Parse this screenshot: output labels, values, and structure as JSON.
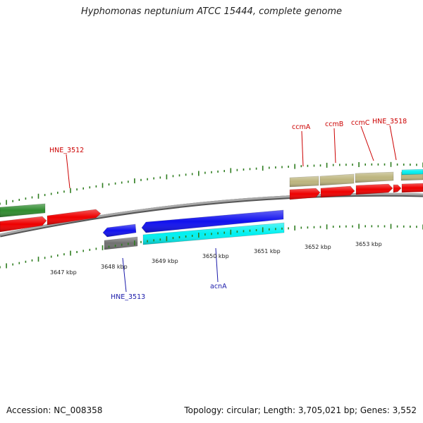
{
  "title": "Hyphomonas neptunium ATCC 15444, complete genome",
  "footer": {
    "accession": "Accession: NC_008358",
    "topology": "Topology: circular; Length: 3,705,021 bp; Genes: 3,552"
  },
  "colors": {
    "backbone": "#8c8c8c",
    "tick": "#2e7d1f",
    "forward_label": "#cc0000",
    "reverse_label": "#1a1aaa",
    "red": "#ee0000",
    "green": "#2e8b2e",
    "khaki": "#bdb57e",
    "cyan": "#00f0f0",
    "blue": "#1010ee",
    "grey": "#707070"
  },
  "scale_labels": [
    "3647 kbp",
    "3648 kbp",
    "3649 kbp",
    "3650 kbp",
    "3651 kbp",
    "3652 kbp",
    "3653 kbp"
  ],
  "gene_labels": [
    {
      "text": "HNE_3512",
      "strand": "forward"
    },
    {
      "text": "ccmA",
      "strand": "forward"
    },
    {
      "text": "ccmB",
      "strand": "forward"
    },
    {
      "text": "ccmC",
      "strand": "forward"
    },
    {
      "text": "HNE_3518",
      "strand": "forward"
    },
    {
      "text": "HNE_3513",
      "strand": "reverse"
    },
    {
      "text": "acnA",
      "strand": "reverse"
    }
  ]
}
